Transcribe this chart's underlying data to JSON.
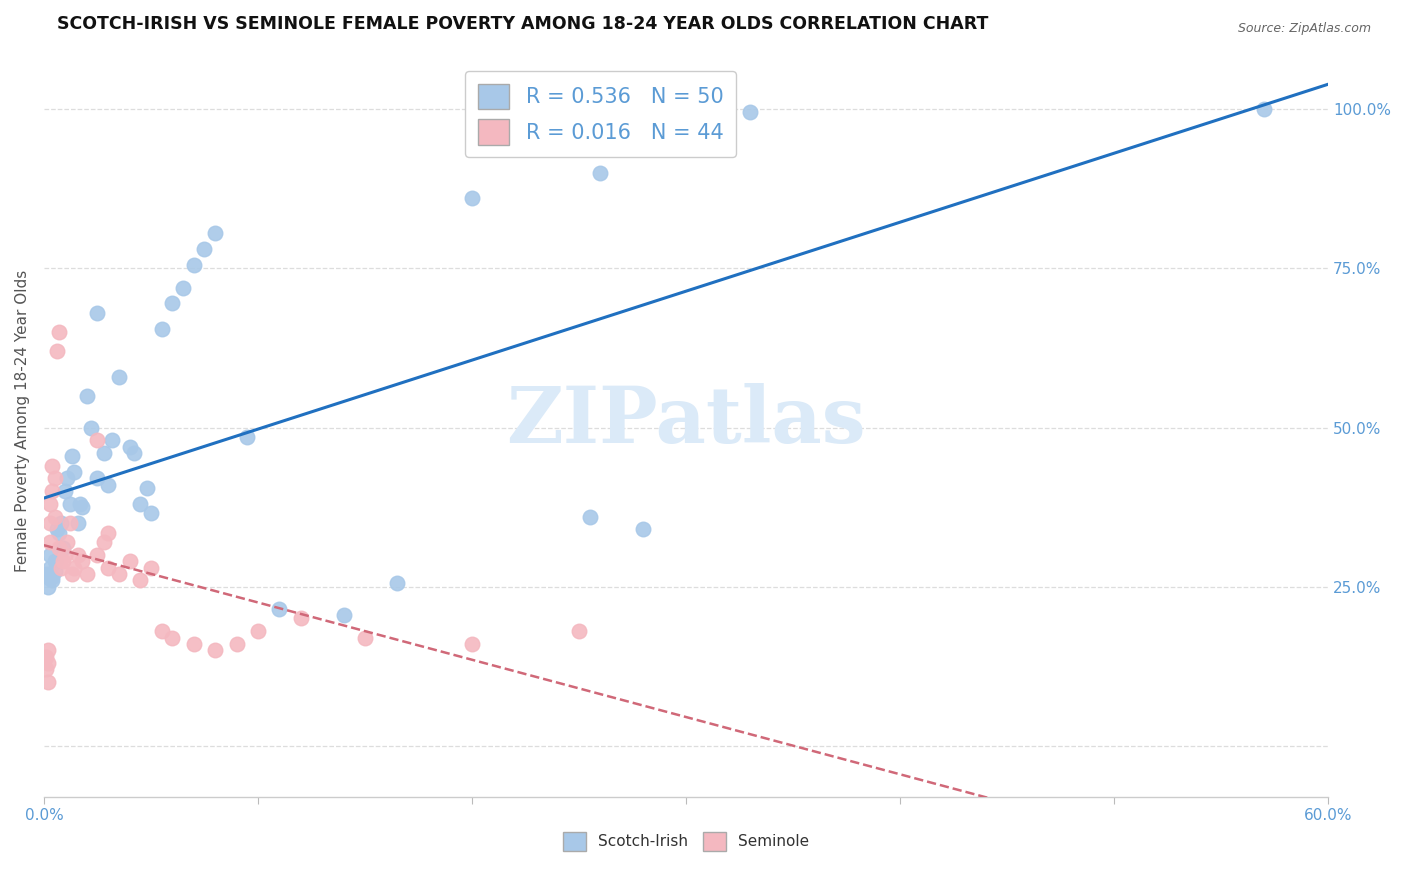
{
  "title": "SCOTCH-IRISH VS SEMINOLE FEMALE POVERTY AMONG 18-24 YEAR OLDS CORRELATION CHART",
  "source": "Source: ZipAtlas.com",
  "ylabel": "Female Poverty Among 18-24 Year Olds",
  "legend_r1": "R = 0.536",
  "legend_n1": "N = 50",
  "legend_r2": "R = 0.016",
  "legend_n2": "N = 44",
  "blue_scatter_color": "#a8c8e8",
  "pink_scatter_color": "#f4b8c0",
  "trend_blue_color": "#2070c0",
  "trend_pink_color": "#d06878",
  "watermark_color": "#dbeaf8",
  "grid_color": "#dddddd",
  "title_color": "#111111",
  "axis_label_color": "#555555",
  "tick_label_color": "#5b9bd5",
  "xlim": [
    0.0,
    0.6
  ],
  "ylim": [
    -0.08,
    1.1
  ],
  "right_ytick_vals": [
    0.0,
    0.25,
    0.5,
    0.75,
    1.0
  ],
  "right_ytick_labels": [
    "",
    "25.0%",
    "50.0%",
    "75.0%",
    "100.0%"
  ],
  "scotch_x": [
    0.001,
    0.002,
    0.002,
    0.003,
    0.003,
    0.004,
    0.004,
    0.005,
    0.005,
    0.006,
    0.007,
    0.008,
    0.009,
    0.01,
    0.011,
    0.012,
    0.013,
    0.014,
    0.016,
    0.017,
    0.018,
    0.02,
    0.022,
    0.025,
    0.025,
    0.028,
    0.03,
    0.032,
    0.035,
    0.04,
    0.042,
    0.045,
    0.048,
    0.05,
    0.055,
    0.06,
    0.065,
    0.07,
    0.075,
    0.08,
    0.095,
    0.11,
    0.14,
    0.165,
    0.2,
    0.26,
    0.33,
    0.57,
    0.255,
    0.28
  ],
  "scotch_y": [
    0.27,
    0.25,
    0.265,
    0.28,
    0.3,
    0.265,
    0.26,
    0.29,
    0.275,
    0.34,
    0.335,
    0.35,
    0.31,
    0.4,
    0.42,
    0.38,
    0.455,
    0.43,
    0.35,
    0.38,
    0.375,
    0.55,
    0.5,
    0.42,
    0.68,
    0.46,
    0.41,
    0.48,
    0.58,
    0.47,
    0.46,
    0.38,
    0.405,
    0.365,
    0.655,
    0.695,
    0.72,
    0.755,
    0.78,
    0.805,
    0.485,
    0.215,
    0.205,
    0.255,
    0.86,
    0.9,
    0.995,
    1.0,
    0.36,
    0.34
  ],
  "seminole_x": [
    0.001,
    0.001,
    0.002,
    0.002,
    0.002,
    0.003,
    0.003,
    0.003,
    0.004,
    0.004,
    0.005,
    0.005,
    0.006,
    0.007,
    0.007,
    0.008,
    0.009,
    0.01,
    0.011,
    0.012,
    0.013,
    0.014,
    0.016,
    0.018,
    0.02,
    0.025,
    0.028,
    0.03,
    0.035,
    0.04,
    0.045,
    0.05,
    0.055,
    0.06,
    0.07,
    0.08,
    0.09,
    0.1,
    0.12,
    0.15,
    0.2,
    0.25,
    0.025,
    0.03
  ],
  "seminole_y": [
    0.14,
    0.12,
    0.13,
    0.1,
    0.15,
    0.32,
    0.35,
    0.38,
    0.4,
    0.44,
    0.42,
    0.36,
    0.62,
    0.65,
    0.31,
    0.28,
    0.29,
    0.3,
    0.32,
    0.35,
    0.27,
    0.28,
    0.3,
    0.29,
    0.27,
    0.3,
    0.32,
    0.28,
    0.27,
    0.29,
    0.26,
    0.28,
    0.18,
    0.17,
    0.16,
    0.15,
    0.16,
    0.18,
    0.2,
    0.17,
    0.16,
    0.18,
    0.48,
    0.335
  ]
}
